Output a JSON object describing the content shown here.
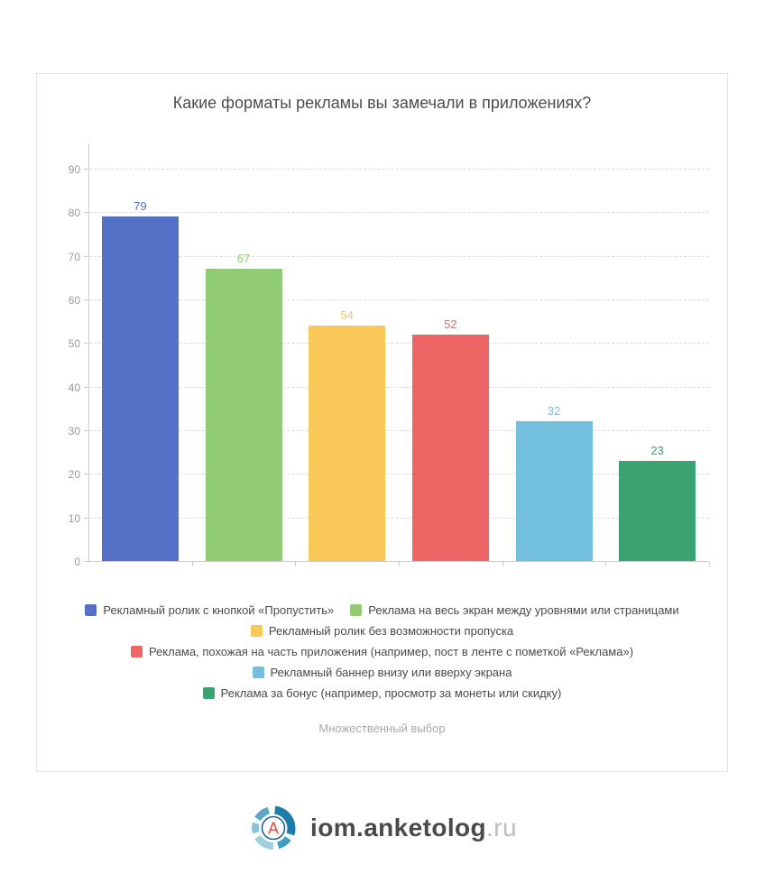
{
  "chart_data": {
    "type": "bar",
    "title": "Какие форматы рекламы вы замечали в приложениях?",
    "categories": [
      "Рекламный ролик с кнопкой «Пропустить»",
      "Реклама на весь экран между уровнями или страницами",
      "Рекламный ролик без возможности пропуска",
      "Реклама, похожая на часть приложения (например, пост в ленте с пометкой «Реклама»)",
      "Рекламный баннер внизу или вверху экрана",
      "Реклама за бонус (например, просмотр за монеты или скидку)"
    ],
    "values": [
      79,
      67,
      54,
      52,
      32,
      23
    ],
    "colors": [
      "#5470c6",
      "#91cc75",
      "#fac858",
      "#ee6666",
      "#73c0de",
      "#3ba272"
    ],
    "xlabel": "",
    "ylabel": "",
    "ylim": [
      0,
      90
    ],
    "yticks": [
      0,
      10,
      20,
      30,
      40,
      50,
      60,
      70,
      80,
      90
    ],
    "grid": true,
    "legend_position": "bottom",
    "legend_rows": [
      [
        0,
        1
      ],
      [
        2
      ],
      [
        3
      ],
      [
        4
      ],
      [
        5
      ]
    ],
    "note": "Множественный выбор"
  },
  "footer": {
    "brand_main": "iom.anketolog",
    "brand_suffix": ".ru",
    "logo_letter": "A",
    "logo_colors": {
      "ring_dark": "#1d7ca9",
      "ring_medium": "#3d9ec2",
      "ring_light": "#9fd0e0",
      "ring_soft": "#8ac4da",
      "ring_mid": "#5aa9cb",
      "inner_ring": "#20648b",
      "letter": "#e14b42"
    }
  }
}
